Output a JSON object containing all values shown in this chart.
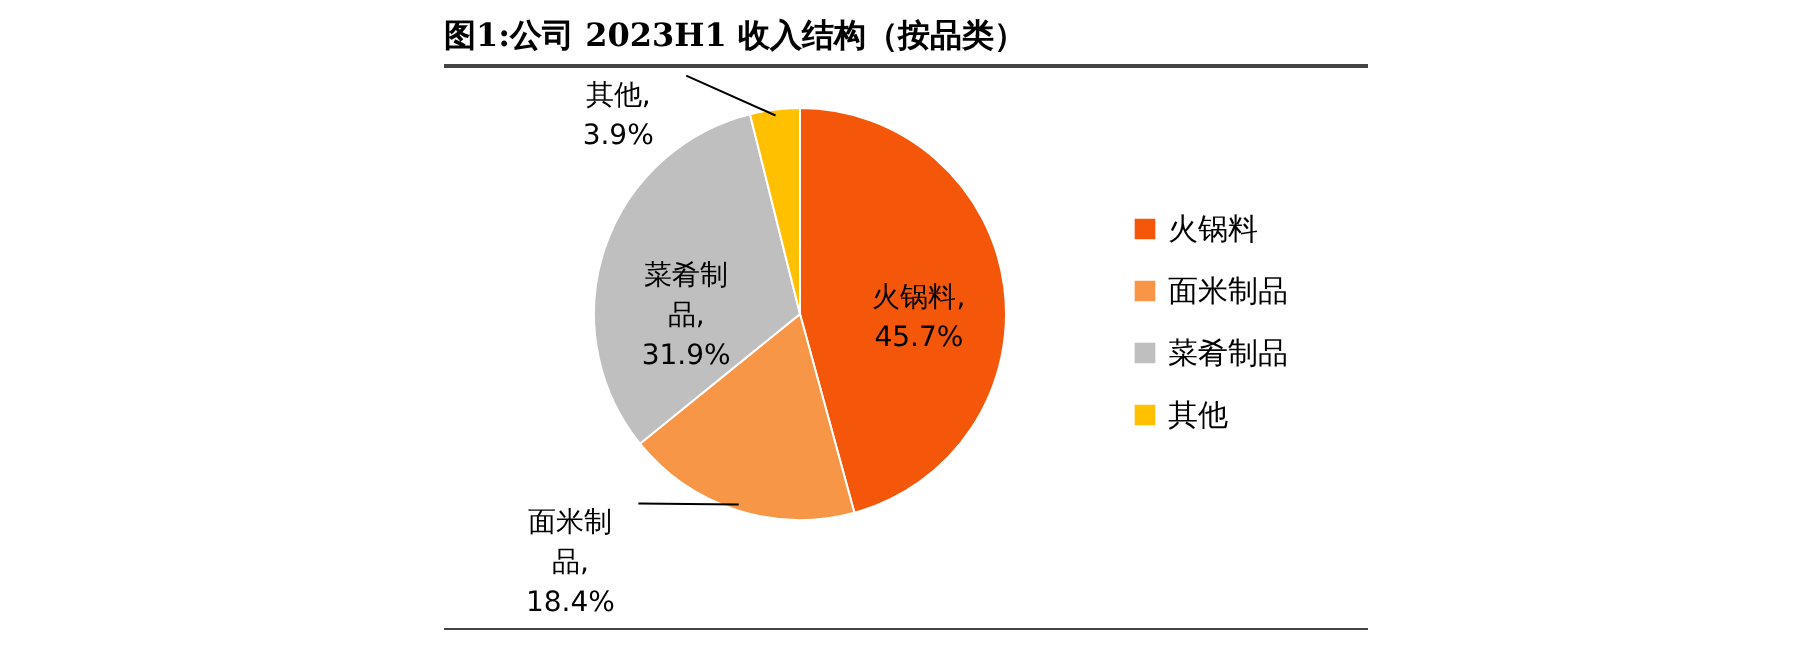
{
  "chart_data": {
    "type": "pie",
    "title": "图1:公司 2023H1 收入结构（按品类）",
    "categories": [
      "火锅料",
      "面米制品",
      "菜肴制品",
      "其他"
    ],
    "values": [
      45.7,
      18.4,
      31.9,
      3.9
    ],
    "colors": [
      "#f4560a",
      "#f79646",
      "#bfbfbf",
      "#ffc000"
    ],
    "value_labels": [
      "火锅料, 45.7%",
      "面米制品, 18.4%",
      "菜肴制品, 31.9%",
      "其他, 3.9%"
    ],
    "legend": "right"
  }
}
